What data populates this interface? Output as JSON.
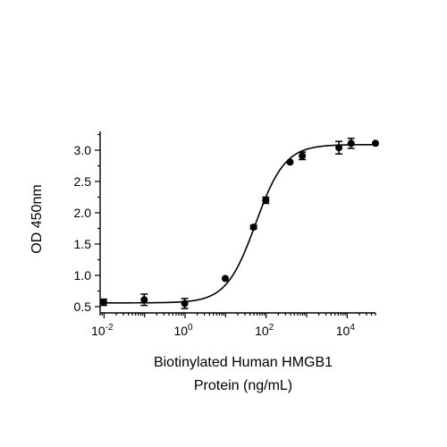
{
  "chart_data": {
    "type": "scatter",
    "title": "",
    "xlabel_lines": [
      "Biotinylated Human HMGB1",
      "Protein (ng/mL)"
    ],
    "ylabel": "OD 450nm",
    "x_scale": "log",
    "xlim": [
      0.008,
      50000
    ],
    "ylim": [
      0.4,
      3.3
    ],
    "x_ticks": [
      {
        "value": 0.01,
        "base": "10",
        "exp": "-2"
      },
      {
        "value": 1,
        "base": "10",
        "exp": "0"
      },
      {
        "value": 100,
        "base": "10",
        "exp": "2"
      },
      {
        "value": 10000,
        "base": "10",
        "exp": "4"
      }
    ],
    "y_ticks": [
      {
        "value": 0.5,
        "label": "0.5"
      },
      {
        "value": 1.0,
        "label": "1.0"
      },
      {
        "value": 1.5,
        "label": "1.5"
      },
      {
        "value": 2.0,
        "label": "2.0"
      },
      {
        "value": 2.5,
        "label": "2.5"
      },
      {
        "value": 3.0,
        "label": "3.0"
      }
    ],
    "grid": false,
    "series": [
      {
        "points": [
          {
            "x": 0.0098,
            "y": 0.57,
            "err": 0.05
          },
          {
            "x": 0.098,
            "y": 0.61,
            "err": 0.09
          },
          {
            "x": 0.98,
            "y": 0.55,
            "err": 0.08
          },
          {
            "x": 9.8,
            "y": 0.95,
            "err": 0.02
          },
          {
            "x": 49,
            "y": 1.77,
            "err": 0.03
          },
          {
            "x": 98,
            "y": 2.2,
            "err": 0.05
          },
          {
            "x": 390,
            "y": 2.81,
            "err": 0.02
          },
          {
            "x": 780,
            "y": 2.91,
            "err": 0.06
          },
          {
            "x": 6250,
            "y": 3.04,
            "err": 0.1
          },
          {
            "x": 12500,
            "y": 3.11,
            "err": 0.08
          },
          {
            "x": 50000,
            "y": 3.11,
            "err": 0.02
          }
        ]
      }
    ],
    "fit": {
      "model": "4PL",
      "bottom": 0.56,
      "top": 3.09,
      "ec50": 55,
      "hill": 1.2
    }
  }
}
